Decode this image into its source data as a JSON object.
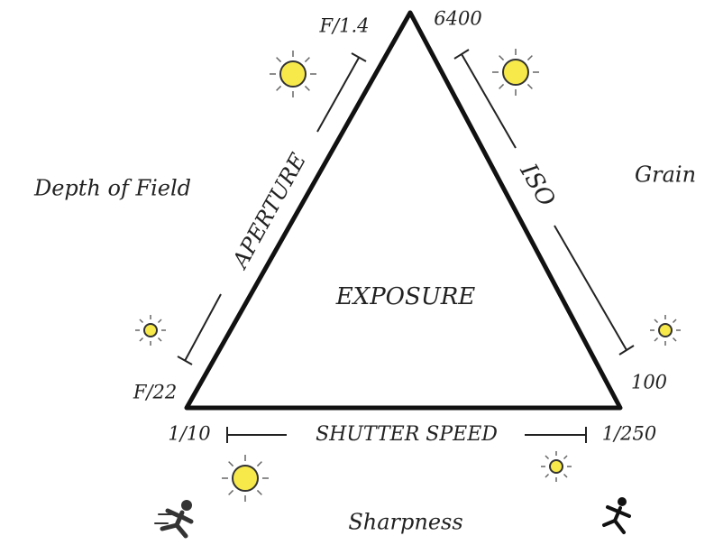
{
  "center": {
    "label": "EXPOSURE"
  },
  "aperture": {
    "label": "APERTURE",
    "wide": "F/1.4",
    "narrow": "F/22",
    "effect": "Depth of Field"
  },
  "iso": {
    "label": "ISO",
    "high": "6400",
    "low": "100",
    "effect": "Grain"
  },
  "shutter": {
    "label": "SHUTTER SPEED",
    "slow": "1/10",
    "fast": "1/250",
    "effect": "Sharpness"
  }
}
